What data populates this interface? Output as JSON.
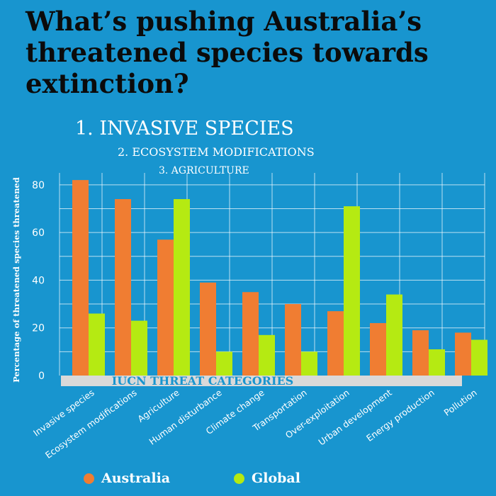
{
  "title": "What’s pushing Australia’s threatened species towards extinction?",
  "ranking": [
    "1. INVASIVE SPECIES",
    "2. ECOSYSTEM MODIFICATIONS",
    "3. AGRICULTURE"
  ],
  "colors": {
    "background": "#1895cf",
    "australia": "#f07d32",
    "global": "#b5ea12",
    "band": "#d9d9d9"
  },
  "chart_data": {
    "type": "bar",
    "xlabel": "IUCN THREAT CATEGORIES",
    "ylabel": "Percentage of threatened species threatened",
    "ylim": [
      0,
      85
    ],
    "yticks": [
      0,
      20,
      40,
      60,
      80
    ],
    "grid": true,
    "legend_position": "bottom",
    "categories": [
      "Invasive species",
      "Ecosystem modifications",
      "Agriculture",
      "Human disturbance",
      "Climate change",
      "Transportation",
      "Over-exploitation",
      "Urban development",
      "Energy production",
      "Pollution"
    ],
    "series": [
      {
        "name": "Australia",
        "values": [
          82,
          74,
          57,
          39,
          35,
          30,
          27,
          22,
          19,
          18
        ]
      },
      {
        "name": "Global",
        "values": [
          26,
          23,
          74,
          10,
          17,
          10,
          71,
          34,
          11,
          15
        ]
      }
    ]
  }
}
